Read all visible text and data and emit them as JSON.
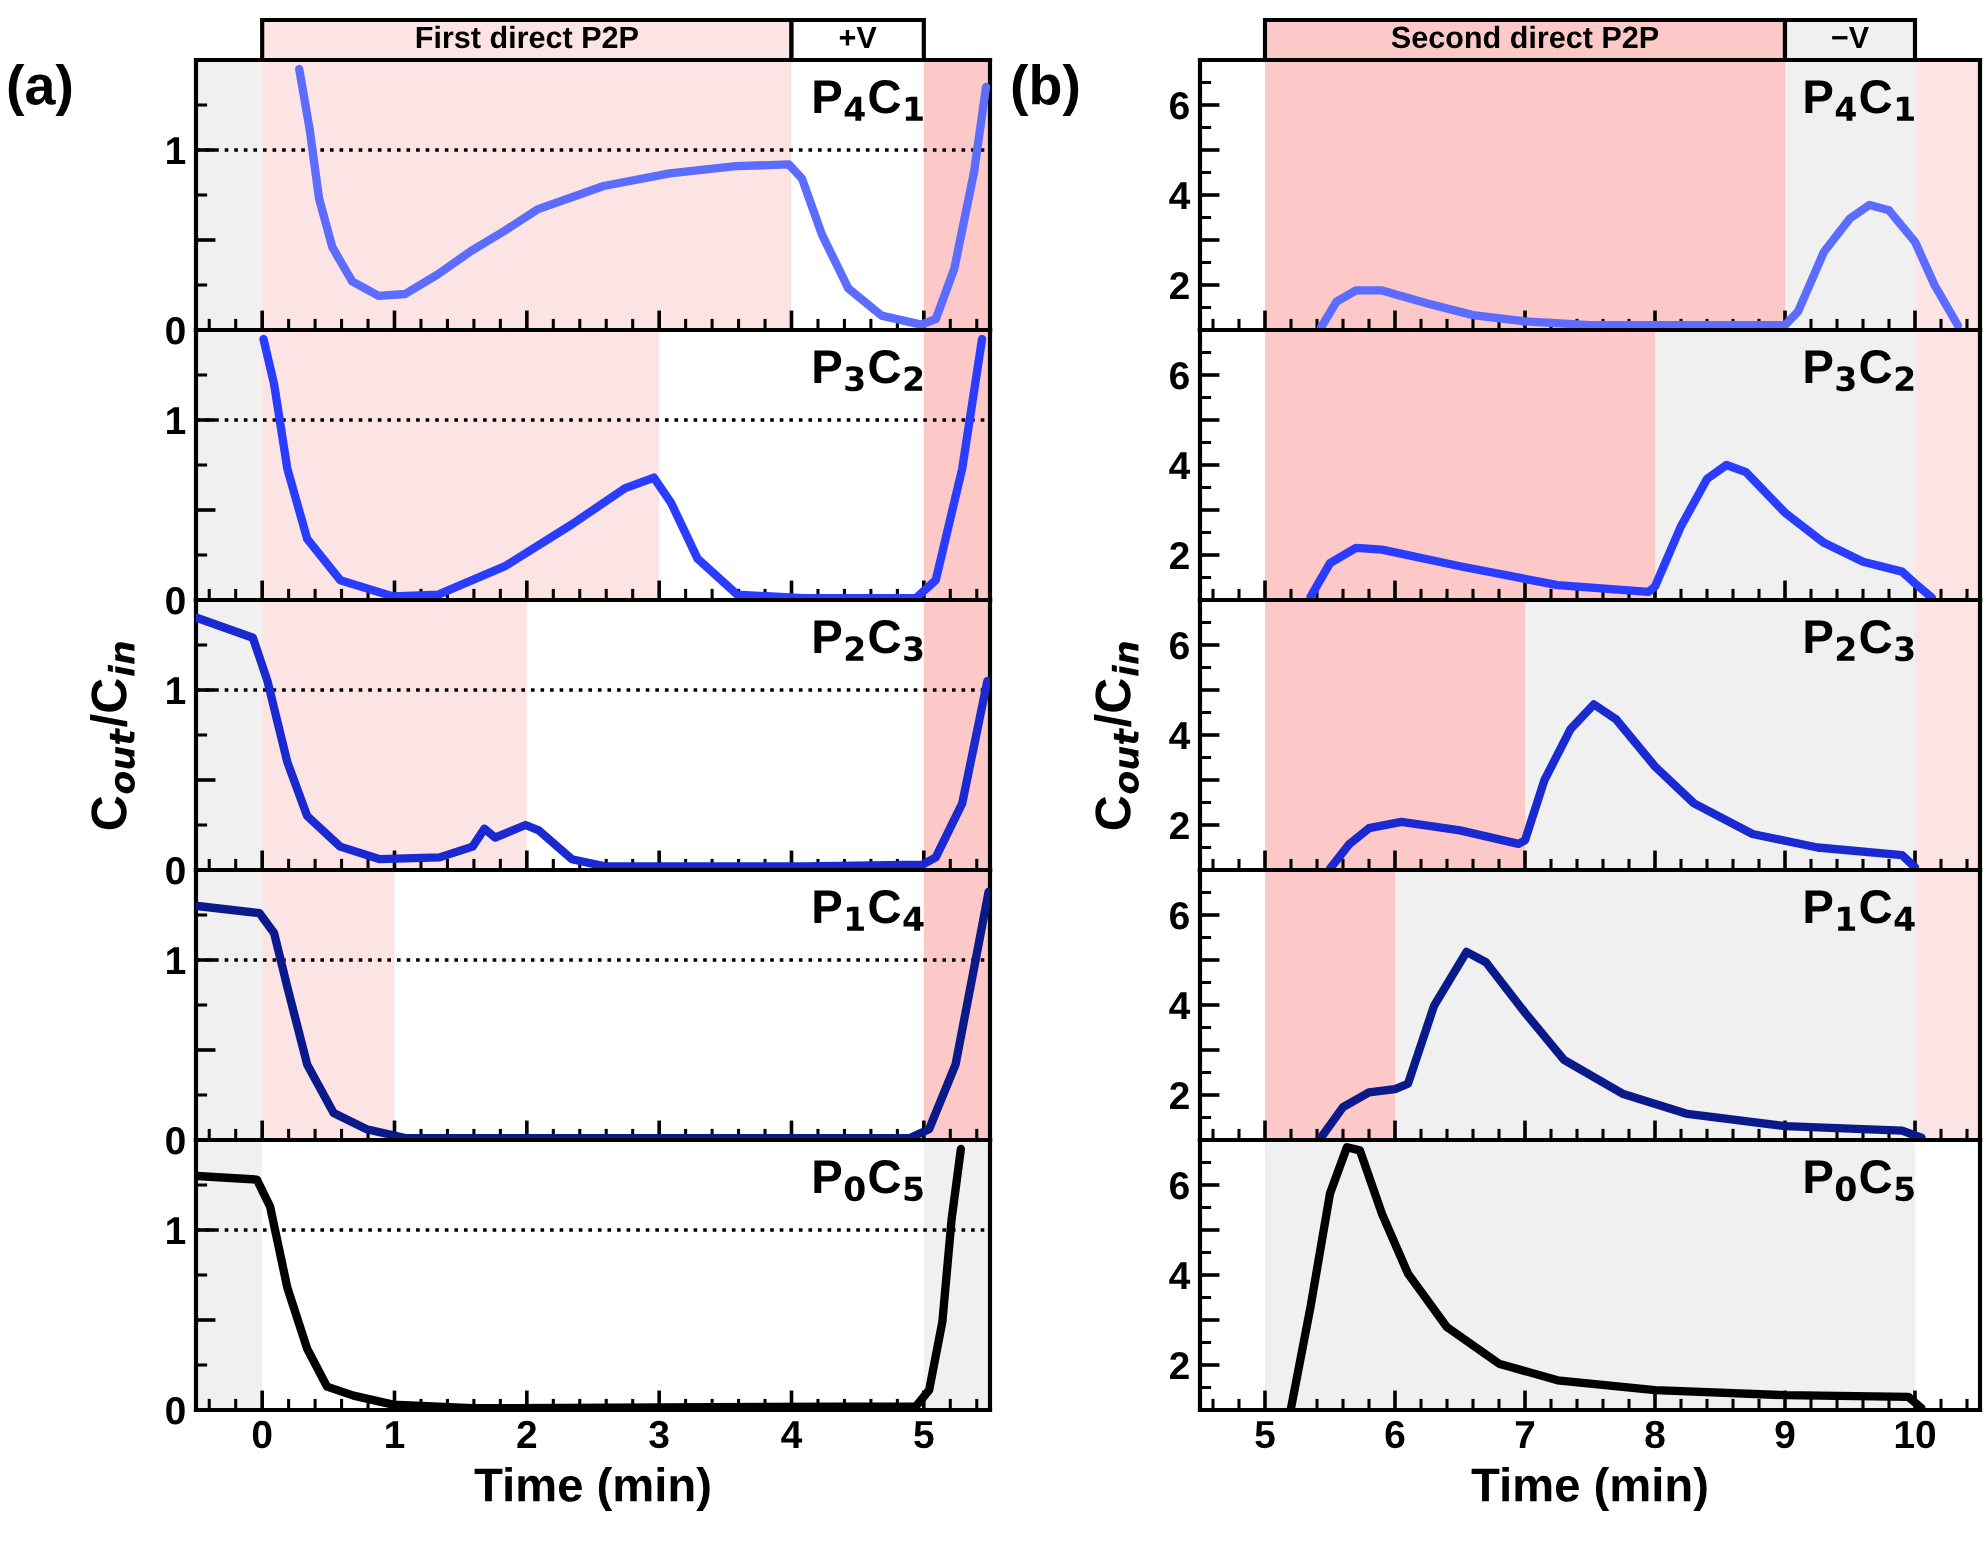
{
  "chart_data": [
    {
      "type": "line",
      "annotations": [
        "(a)",
        "P$_{4}$C$_{1}$"
      ],
      "x": [
        0.28,
        0.36,
        0.43,
        0.53,
        0.68,
        0.88,
        1.08,
        1.33,
        1.58,
        1.83,
        2.08,
        2.58,
        3.08,
        3.58,
        3.98,
        4.08,
        4.23,
        4.43,
        4.68,
        4.98,
        5.09,
        5.23,
        5.38,
        5.47
      ],
      "series": [
        {
          "color": "#5b6cff",
          "values": [
            1.45,
            1.11,
            0.73,
            0.46,
            0.27,
            0.19,
            0.2,
            0.31,
            0.44,
            0.55,
            0.67,
            0.8,
            0.87,
            0.91,
            0.92,
            0.84,
            0.53,
            0.23,
            0.08,
            0.03,
            0.06,
            0.34,
            0.88,
            1.35
          ]
        }
      ],
      "xlim": [
        -0.5,
        5.5
      ],
      "xticks": [
        0,
        1,
        2,
        3,
        4,
        5
      ],
      "ylim": [
        0,
        1.5
      ],
      "yticks": [
        0,
        {
          "value": 0.5,
          "label": null
        },
        1
      ],
      "tick_labels": "y",
      "ref_lines": [
        {
          "axis": "y",
          "value": 1,
          "line_style": "dotted",
          "color": "#000000"
        }
      ],
      "bands": [
        {
          "axis": "x",
          "from": -0.5,
          "to": 0,
          "color": "#f0f0f0"
        },
        {
          "axis": "x",
          "from": 0,
          "to": 4,
          "color": "#fce4e4",
          "label": "First direct P2P"
        },
        {
          "axis": "x",
          "from": 4,
          "to": 5,
          "color": "#ffffff",
          "label": "+V"
        },
        {
          "axis": "x",
          "from": 5,
          "to": 5.5,
          "color": "#fcc8c8"
        }
      ]
    },
    {
      "type": "line",
      "annotations": [
        "P$_{3}$C$_{2}$"
      ],
      "x": [
        0.01,
        0.09,
        0.19,
        0.34,
        0.59,
        0.99,
        1.33,
        1.84,
        2.34,
        2.74,
        2.96,
        3.09,
        3.29,
        3.59,
        4.09,
        4.94,
        5.09,
        5.29,
        5.44
      ],
      "series": [
        {
          "color": "#2a3cff",
          "values": [
            1.45,
            1.2,
            0.73,
            0.34,
            0.11,
            0.02,
            0.03,
            0.19,
            0.42,
            0.62,
            0.68,
            0.54,
            0.23,
            0.03,
            0.01,
            0.01,
            0.11,
            0.73,
            1.45
          ]
        }
      ],
      "xlim": [
        -0.5,
        5.5
      ],
      "xticks": [
        0,
        1,
        2,
        3,
        4,
        5
      ],
      "ylim": [
        0,
        1.5
      ],
      "yticks": [
        0,
        {
          "value": 0.5,
          "label": null
        },
        1
      ],
      "tick_labels": "y",
      "ref_lines": [
        {
          "axis": "y",
          "value": 1,
          "line_style": "dotted",
          "color": "#000000"
        }
      ],
      "bands": [
        {
          "axis": "x",
          "from": -0.5,
          "to": 0,
          "color": "#f0f0f0"
        },
        {
          "axis": "x",
          "from": 0,
          "to": 3,
          "color": "#fce4e4"
        },
        {
          "axis": "x",
          "from": 5,
          "to": 5.5,
          "color": "#fcc8c8"
        }
      ]
    },
    {
      "type": "line",
      "annotations": [
        "P$_{2}$C$_{3}$"
      ],
      "ylabel": "C$_{out}$/C$_{in}$",
      "x": [
        -0.49,
        -0.07,
        0.04,
        0.19,
        0.34,
        0.59,
        0.89,
        1.34,
        1.59,
        1.68,
        1.76,
        1.99,
        2.09,
        2.34,
        2.59,
        4.09,
        4.99,
        5.09,
        5.29,
        5.48
      ],
      "series": [
        {
          "color": "#1a2ad0",
          "values": [
            1.4,
            1.29,
            1.05,
            0.6,
            0.3,
            0.13,
            0.06,
            0.07,
            0.13,
            0.23,
            0.18,
            0.25,
            0.22,
            0.06,
            0.02,
            0.02,
            0.03,
            0.07,
            0.37,
            1.05
          ]
        }
      ],
      "xlim": [
        -0.5,
        5.5
      ],
      "xticks": [
        0,
        1,
        2,
        3,
        4,
        5
      ],
      "ylim": [
        0,
        1.5
      ],
      "yticks": [
        0,
        {
          "value": 0.5,
          "label": null
        },
        1
      ],
      "tick_labels": "y",
      "ref_lines": [
        {
          "axis": "y",
          "value": 1,
          "line_style": "dotted",
          "color": "#000000"
        }
      ],
      "bands": [
        {
          "axis": "x",
          "from": -0.5,
          "to": 0,
          "color": "#f0f0f0"
        },
        {
          "axis": "x",
          "from": 0,
          "to": 2,
          "color": "#fce4e4"
        },
        {
          "axis": "x",
          "from": 5,
          "to": 5.5,
          "color": "#fcc8c8"
        }
      ]
    },
    {
      "type": "line",
      "annotations": [
        "P$_{1}$C$_{4}$"
      ],
      "x": [
        -0.49,
        -0.02,
        0.09,
        0.19,
        0.34,
        0.54,
        0.79,
        1.09,
        4.89,
        5.04,
        5.24,
        5.36,
        5.49
      ],
      "series": [
        {
          "color": "#0a1a8a",
          "values": [
            1.3,
            1.26,
            1.15,
            0.85,
            0.42,
            0.15,
            0.06,
            0.01,
            0.01,
            0.06,
            0.42,
            0.88,
            1.38
          ]
        }
      ],
      "xlim": [
        -0.5,
        5.5
      ],
      "xticks": [
        0,
        1,
        2,
        3,
        4,
        5
      ],
      "ylim": [
        0,
        1.5
      ],
      "yticks": [
        0,
        {
          "value": 0.5,
          "label": null
        },
        1
      ],
      "tick_labels": "y",
      "ref_lines": [
        {
          "axis": "y",
          "value": 1,
          "line_style": "dotted",
          "color": "#000000"
        }
      ],
      "bands": [
        {
          "axis": "x",
          "from": -0.5,
          "to": 0,
          "color": "#f0f0f0"
        },
        {
          "axis": "x",
          "from": 0,
          "to": 1,
          "color": "#fce4e4"
        },
        {
          "axis": "x",
          "from": 5,
          "to": 5.5,
          "color": "#fcc8c8"
        }
      ]
    },
    {
      "type": "line",
      "annotations": [
        "P$_{0}$C$_{5}$"
      ],
      "xlabel": "Time (min)",
      "x": [
        -0.49,
        -0.04,
        0.06,
        0.19,
        0.34,
        0.49,
        0.69,
        0.99,
        1.59,
        4.94,
        5.04,
        5.14,
        5.21,
        5.28
      ],
      "series": [
        {
          "color": "#000000",
          "values": [
            1.3,
            1.28,
            1.13,
            0.68,
            0.34,
            0.13,
            0.08,
            0.03,
            0.01,
            0.02,
            0.11,
            0.49,
            1.06,
            1.45
          ]
        }
      ],
      "xlim": [
        -0.5,
        5.5
      ],
      "xticks": [
        0,
        1,
        2,
        3,
        4,
        5
      ],
      "ylim": [
        0,
        1.5
      ],
      "yticks": [
        0,
        {
          "value": 0.5,
          "label": null
        },
        1
      ],
      "ref_lines": [
        {
          "axis": "y",
          "value": 1,
          "line_style": "dotted",
          "color": "#000000"
        }
      ],
      "bands": [
        {
          "axis": "x",
          "from": -0.5,
          "to": 0,
          "color": "#f0f0f0"
        },
        {
          "axis": "x",
          "from": 5,
          "to": 5.5,
          "color": "#f0f0f0"
        }
      ]
    },
    {
      "type": "line",
      "annotations": [
        "(b)",
        "P$_{4}$C$_{1}$"
      ],
      "x": [
        5.43,
        5.55,
        5.7,
        5.9,
        6.25,
        6.6,
        7.0,
        7.5,
        9.0,
        9.1,
        9.3,
        9.5,
        9.65,
        9.8,
        10.0,
        10.15,
        10.33
      ],
      "series": [
        {
          "color": "#5b6cff",
          "values": [
            1.05,
            1.63,
            1.88,
            1.88,
            1.59,
            1.33,
            1.19,
            1.11,
            1.11,
            1.41,
            2.74,
            3.48,
            3.78,
            3.66,
            2.96,
            2.0,
            1.1
          ]
        }
      ],
      "xlim": [
        4.5,
        10.5
      ],
      "xticks": [
        5,
        6,
        7,
        8,
        9,
        10
      ],
      "ylim": [
        1,
        7
      ],
      "yticks": [
        {
          "value": 1,
          "label": null
        },
        2,
        {
          "value": 3,
          "label": null
        },
        4,
        {
          "value": 5,
          "label": null
        },
        6
      ],
      "tick_labels": "y",
      "bands": [
        {
          "axis": "x",
          "from": 5,
          "to": 9,
          "color": "#fcc8c8",
          "label": "Second direct P2P"
        },
        {
          "axis": "x",
          "from": 9,
          "to": 10,
          "color": "#f0f0f0",
          "label": "−V"
        },
        {
          "axis": "x",
          "from": 10,
          "to": 10.5,
          "color": "#fce4e4"
        }
      ]
    },
    {
      "type": "line",
      "annotations": [
        "P$_{3}$C$_{2}$"
      ],
      "x": [
        5.35,
        5.5,
        5.7,
        5.9,
        6.5,
        7.25,
        7.95,
        8.0,
        8.2,
        8.4,
        8.55,
        8.7,
        9.0,
        9.3,
        9.6,
        9.9,
        10.0,
        10.13
      ],
      "series": [
        {
          "color": "#2a3cff",
          "values": [
            1.07,
            1.82,
            2.16,
            2.12,
            1.75,
            1.33,
            1.18,
            1.3,
            2.64,
            3.69,
            4.0,
            3.84,
            2.94,
            2.27,
            1.85,
            1.63,
            1.37,
            1.05
          ]
        }
      ],
      "xlim": [
        4.5,
        10.5
      ],
      "xticks": [
        5,
        6,
        7,
        8,
        9,
        10
      ],
      "ylim": [
        1,
        7
      ],
      "yticks": [
        {
          "value": 1,
          "label": null
        },
        2,
        {
          "value": 3,
          "label": null
        },
        4,
        {
          "value": 5,
          "label": null
        },
        6
      ],
      "tick_labels": "y",
      "bands": [
        {
          "axis": "x",
          "from": 5,
          "to": 8,
          "color": "#fcc8c8"
        },
        {
          "axis": "x",
          "from": 8,
          "to": 10,
          "color": "#f0f0f0"
        },
        {
          "axis": "x",
          "from": 10,
          "to": 10.5,
          "color": "#fce4e4"
        }
      ]
    },
    {
      "type": "line",
      "annotations": [
        "P$_{2}$C$_{3}$"
      ],
      "ylabel": "C$_{out}$/C$_{in}$",
      "x": [
        5.5,
        5.65,
        5.8,
        6.05,
        6.5,
        6.95,
        7.0,
        7.15,
        7.35,
        7.53,
        7.7,
        8.0,
        8.3,
        8.75,
        9.25,
        9.9,
        10.0
      ],
      "series": [
        {
          "color": "#1a2ad0",
          "values": [
            1.03,
            1.58,
            1.93,
            2.07,
            1.88,
            1.58,
            1.66,
            3.0,
            4.13,
            4.68,
            4.35,
            3.3,
            2.48,
            1.8,
            1.5,
            1.33,
            1.06
          ]
        }
      ],
      "xlim": [
        4.5,
        10.5
      ],
      "xticks": [
        5,
        6,
        7,
        8,
        9,
        10
      ],
      "ylim": [
        1,
        7
      ],
      "yticks": [
        {
          "value": 1,
          "label": null
        },
        2,
        {
          "value": 3,
          "label": null
        },
        4,
        {
          "value": 5,
          "label": null
        },
        6
      ],
      "tick_labels": "y",
      "bands": [
        {
          "axis": "x",
          "from": 5,
          "to": 7,
          "color": "#fcc8c8"
        },
        {
          "axis": "x",
          "from": 7,
          "to": 10,
          "color": "#f0f0f0"
        },
        {
          "axis": "x",
          "from": 10,
          "to": 10.5,
          "color": "#fce4e4"
        }
      ]
    },
    {
      "type": "line",
      "annotations": [
        "P$_{1}$C$_{4}$"
      ],
      "x": [
        5.43,
        5.6,
        5.8,
        6.0,
        6.1,
        6.3,
        6.55,
        6.7,
        7.0,
        7.3,
        7.75,
        8.25,
        9.0,
        9.9,
        10.05
      ],
      "series": [
        {
          "color": "#0a1a8a",
          "values": [
            1.05,
            1.73,
            2.06,
            2.13,
            2.25,
            3.98,
            5.18,
            4.95,
            3.83,
            2.78,
            2.03,
            1.58,
            1.31,
            1.21,
            1.05
          ]
        }
      ],
      "xlim": [
        4.5,
        10.5
      ],
      "xticks": [
        5,
        6,
        7,
        8,
        9,
        10
      ],
      "ylim": [
        1,
        7
      ],
      "yticks": [
        {
          "value": 1,
          "label": null
        },
        2,
        {
          "value": 3,
          "label": null
        },
        4,
        {
          "value": 5,
          "label": null
        },
        6
      ],
      "tick_labels": "y",
      "bands": [
        {
          "axis": "x",
          "from": 5,
          "to": 6,
          "color": "#fcc8c8"
        },
        {
          "axis": "x",
          "from": 6,
          "to": 10,
          "color": "#f0f0f0"
        },
        {
          "axis": "x",
          "from": 10,
          "to": 10.5,
          "color": "#fce4e4"
        }
      ]
    },
    {
      "type": "line",
      "annotations": [
        "P$_{0}$C$_{5}$"
      ],
      "xlabel": "Time (min)",
      "x": [
        5.2,
        5.35,
        5.5,
        5.63,
        5.73,
        5.9,
        6.1,
        6.4,
        6.8,
        7.25,
        8.0,
        9.0,
        9.95,
        10.05
      ],
      "series": [
        {
          "color": "#000000",
          "values": [
            1.04,
            3.29,
            5.81,
            6.84,
            6.77,
            5.36,
            4.03,
            2.84,
            2.03,
            1.66,
            1.44,
            1.33,
            1.29,
            1.04
          ]
        }
      ],
      "xlim": [
        4.5,
        10.5
      ],
      "xticks": [
        5,
        6,
        7,
        8,
        9,
        10
      ],
      "ylim": [
        1,
        7
      ],
      "yticks": [
        {
          "value": 1,
          "label": null
        },
        2,
        {
          "value": 3,
          "label": null
        },
        4,
        {
          "value": 5,
          "label": null
        },
        6
      ],
      "bands": [
        {
          "axis": "x",
          "from": 5,
          "to": 10,
          "color": "#f0f0f0"
        }
      ]
    }
  ]
}
